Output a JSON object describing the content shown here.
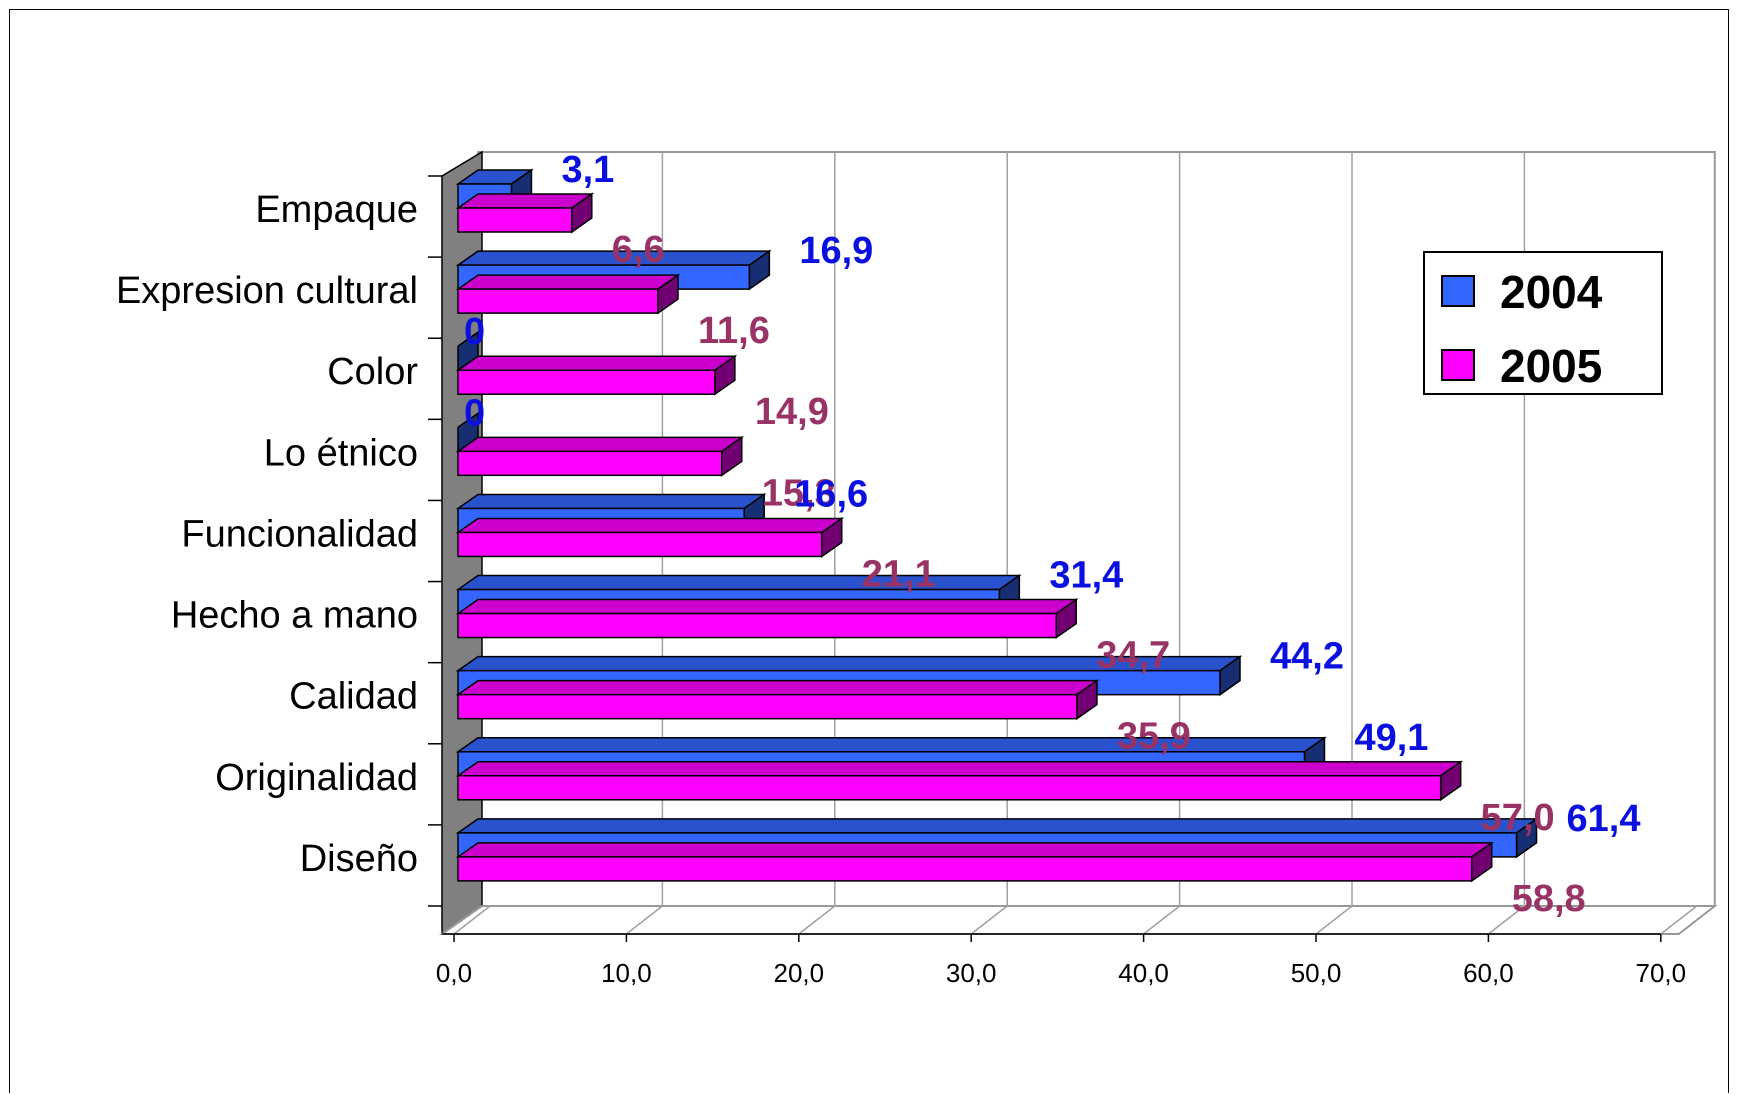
{
  "chart_data": {
    "type": "bar",
    "orientation": "horizontal",
    "three_d": true,
    "categories": [
      "Empaque",
      "Expresion cultural",
      "Color",
      "Lo étnico",
      "Funcionalidad",
      "Hecho a mano",
      "Calidad",
      "Originalidad",
      "Diseño"
    ],
    "series": [
      {
        "name": "2004",
        "values": [
          3.1,
          16.9,
          0,
          0,
          16.6,
          31.4,
          44.2,
          49.1,
          61.4
        ],
        "value_labels": [
          "3,1",
          "16,9",
          "0",
          "0",
          "16,6",
          "31,4",
          "44,2",
          "49,1",
          "61,4"
        ],
        "color": "#3366ff",
        "label_color": "#0a10e0"
      },
      {
        "name": "2005",
        "values": [
          6.6,
          11.6,
          14.9,
          15.3,
          21.1,
          34.7,
          35.9,
          57.0,
          58.8
        ],
        "value_labels": [
          "6,6",
          "11,6",
          "14,9",
          "15,3",
          "21,1",
          "34,7",
          "35,9",
          "57,0",
          "58,8"
        ],
        "color": "#ff00ff",
        "label_color": "#993366"
      }
    ],
    "x_ticks": [
      "0,0",
      "10,0",
      "20,0",
      "30,0",
      "40,0",
      "50,0",
      "60,0",
      "70,0"
    ],
    "xlim": [
      0,
      70
    ],
    "grid": true,
    "legend_position": "right"
  }
}
